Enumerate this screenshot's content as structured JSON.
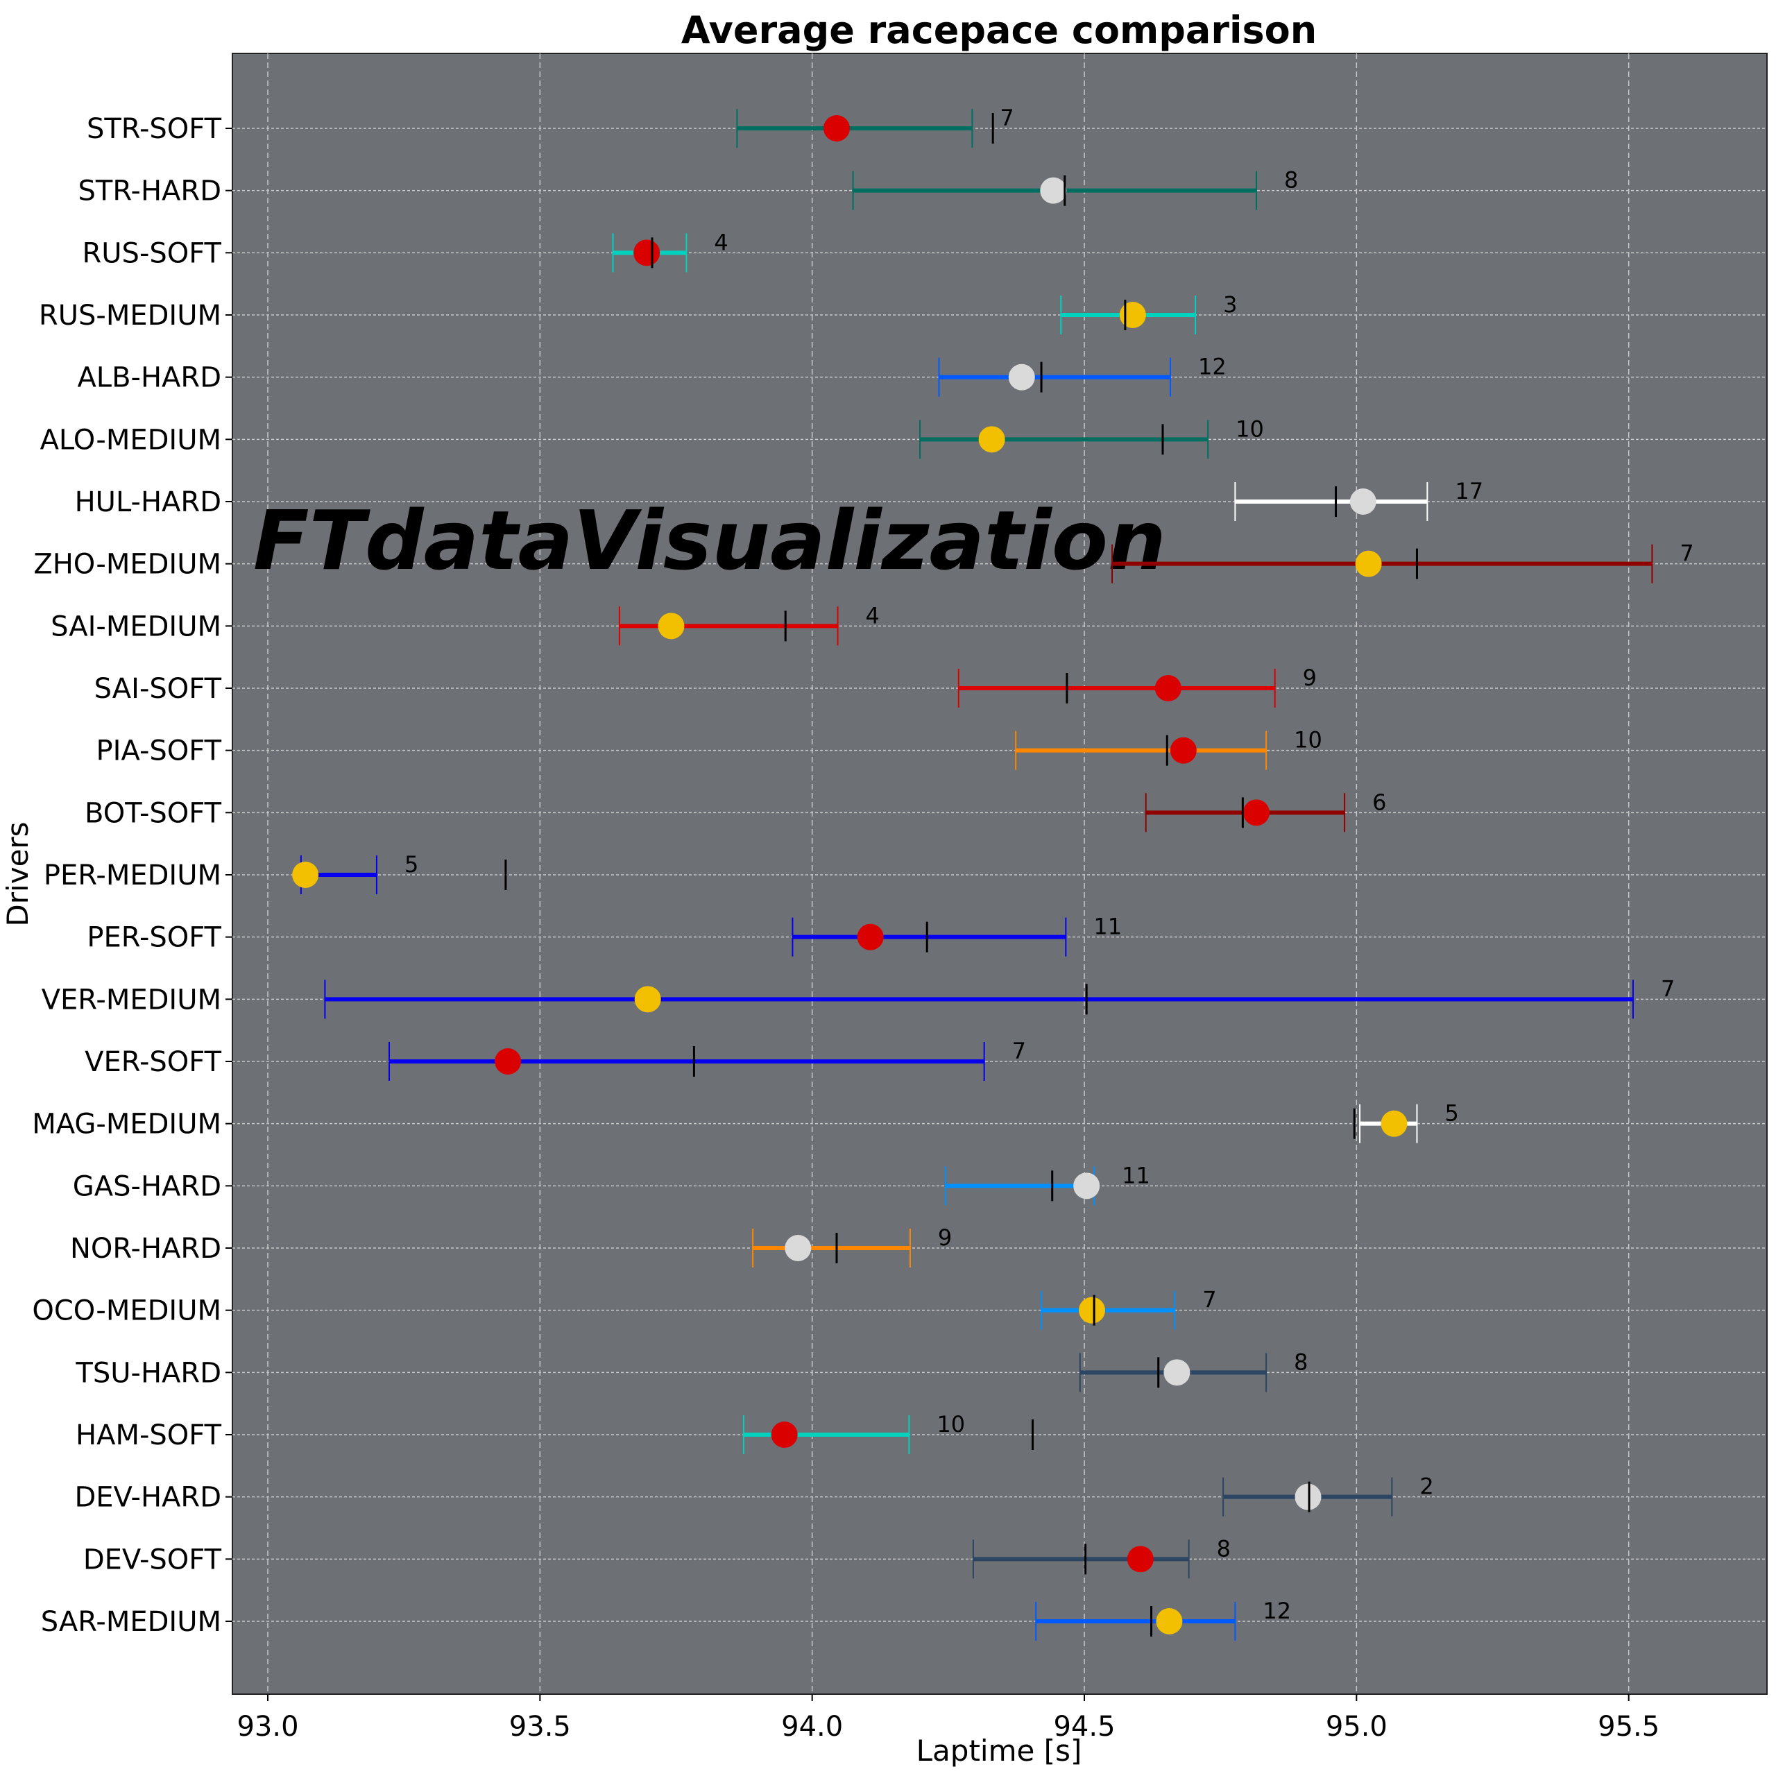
{
  "chart_data": {
    "type": "errorbar",
    "title": "Average racepace comparison",
    "xlabel": "Laptime [s]",
    "ylabel": "Drivers",
    "xlim": [
      92.935,
      95.754
    ],
    "xticks": [
      "93.0",
      "93.5",
      "94.0",
      "94.5",
      "95.0",
      "95.5"
    ],
    "grid": true,
    "watermark": "FTdataVisualization",
    "compound_colors": {
      "SOFT": "#DA0000",
      "MEDIUM": "#F2C000",
      "HARD": "#DADADA"
    },
    "rows": [
      {
        "label": "STR-SOFT",
        "low": 93.862,
        "high": 94.294,
        "mean": 94.045,
        "median": 94.332,
        "count": "7",
        "color": "#006F62"
      },
      {
        "label": "STR-HARD",
        "low": 94.075,
        "high": 94.816,
        "mean": 94.443,
        "median": 94.464,
        "count": "8",
        "color": "#006F62"
      },
      {
        "label": "RUS-SOFT",
        "low": 93.634,
        "high": 93.769,
        "mean": 93.696,
        "median": 93.706,
        "count": "4",
        "color": "#00D2BE"
      },
      {
        "label": "RUS-MEDIUM",
        "low": 94.457,
        "high": 94.704,
        "mean": 94.589,
        "median": 94.575,
        "count": "3",
        "color": "#00D2BE"
      },
      {
        "label": "ALB-HARD",
        "low": 94.233,
        "high": 94.658,
        "mean": 94.385,
        "median": 94.421,
        "count": "12",
        "color": "#005AFF"
      },
      {
        "label": "ALO-MEDIUM",
        "low": 94.198,
        "high": 94.727,
        "mean": 94.33,
        "median": 94.644,
        "count": "10",
        "color": "#006F62"
      },
      {
        "label": "HUL-HARD",
        "low": 94.777,
        "high": 95.13,
        "mean": 95.012,
        "median": 94.962,
        "count": "17",
        "color": "#FFFFFF"
      },
      {
        "label": "ZHO-MEDIUM",
        "low": 94.551,
        "high": 95.543,
        "mean": 95.022,
        "median": 95.111,
        "count": "7",
        "color": "#900000"
      },
      {
        "label": "SAI-MEDIUM",
        "low": 93.646,
        "high": 94.047,
        "mean": 93.741,
        "median": 93.951,
        "count": "4",
        "color": "#DC0000"
      },
      {
        "label": "SAI-SOFT",
        "low": 94.269,
        "high": 94.85,
        "mean": 94.654,
        "median": 94.468,
        "count": "9",
        "color": "#DC0000"
      },
      {
        "label": "PIA-SOFT",
        "low": 94.374,
        "high": 94.834,
        "mean": 94.682,
        "median": 94.652,
        "count": "10",
        "color": "#FF8700"
      },
      {
        "label": "BOT-SOFT",
        "low": 94.613,
        "high": 94.978,
        "mean": 94.816,
        "median": 94.791,
        "count": "6",
        "color": "#900000"
      },
      {
        "label": "PER-MEDIUM",
        "low": 93.061,
        "high": 93.2,
        "mean": 93.069,
        "median": 93.437,
        "count": "5",
        "color": "#0600EF"
      },
      {
        "label": "PER-SOFT",
        "low": 93.964,
        "high": 94.466,
        "mean": 94.107,
        "median": 94.211,
        "count": "11",
        "color": "#0600EF"
      },
      {
        "label": "VER-MEDIUM",
        "low": 93.105,
        "high": 95.508,
        "mean": 93.698,
        "median": 94.504,
        "count": "7",
        "color": "#0600EF"
      },
      {
        "label": "VER-SOFT",
        "low": 93.223,
        "high": 94.316,
        "mean": 93.441,
        "median": 93.783,
        "count": "7",
        "color": "#0600EF"
      },
      {
        "label": "MAG-MEDIUM",
        "low": 95.006,
        "high": 95.111,
        "mean": 95.069,
        "median": 94.996,
        "count": "5",
        "color": "#FFFFFF"
      },
      {
        "label": "GAS-HARD",
        "low": 94.245,
        "high": 94.518,
        "mean": 94.504,
        "median": 94.441,
        "count": "11",
        "color": "#0090FF"
      },
      {
        "label": "NOR-HARD",
        "low": 93.891,
        "high": 94.18,
        "mean": 93.974,
        "median": 94.045,
        "count": "9",
        "color": "#FF8700"
      },
      {
        "label": "OCO-MEDIUM",
        "low": 94.421,
        "high": 94.666,
        "mean": 94.514,
        "median": 94.518,
        "count": "7",
        "color": "#0090FF"
      },
      {
        "label": "TSU-HARD",
        "low": 94.492,
        "high": 94.834,
        "mean": 94.67,
        "median": 94.636,
        "count": "8",
        "color": "#2B4562"
      },
      {
        "label": "HAM-SOFT",
        "low": 93.874,
        "high": 94.178,
        "mean": 93.949,
        "median": 94.405,
        "count": "10",
        "color": "#00D2BE"
      },
      {
        "label": "DEV-HARD",
        "low": 94.755,
        "high": 95.065,
        "mean": 94.911,
        "median": 94.913,
        "count": "2",
        "color": "#2B4562"
      },
      {
        "label": "DEV-SOFT",
        "low": 94.296,
        "high": 94.692,
        "mean": 94.603,
        "median": 94.502,
        "count": "8",
        "color": "#2B4562"
      },
      {
        "label": "SAR-MEDIUM",
        "low": 94.411,
        "high": 94.777,
        "mean": 94.656,
        "median": 94.623,
        "count": "12",
        "color": "#005AFF"
      }
    ]
  }
}
